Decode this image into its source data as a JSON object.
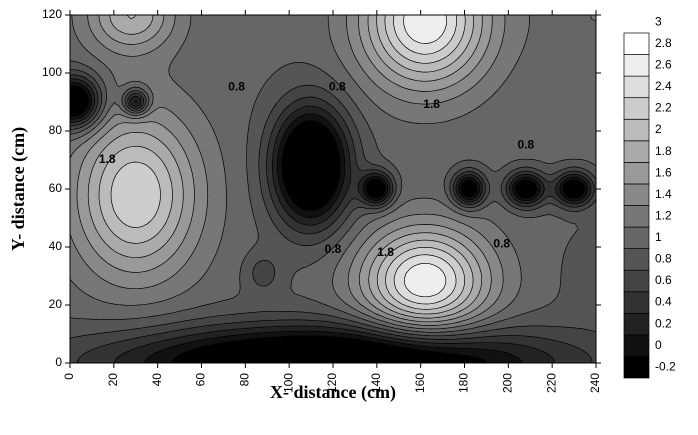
{
  "chart_data": {
    "type": "heatmap",
    "subtype": "filled-contour",
    "xlabel": "X- distance (cm)",
    "ylabel": "Y- distance (cm)",
    "xlim": [
      0,
      240
    ],
    "ylim": [
      0,
      120
    ],
    "x_ticks": [
      0,
      20,
      40,
      60,
      80,
      100,
      120,
      140,
      160,
      180,
      200,
      220,
      240
    ],
    "y_ticks": [
      0,
      20,
      40,
      60,
      80,
      100,
      120
    ],
    "colorbar": {
      "levels": [
        -0.2,
        0,
        0.2,
        0.4,
        0.6,
        0.8,
        1,
        1.2,
        1.4,
        1.6,
        1.8,
        2,
        2.2,
        2.4,
        2.6,
        2.8,
        3
      ],
      "labels": [
        "-0.2",
        "0",
        "0.2",
        "0.4",
        "0.6",
        "0.8",
        "1",
        "1.2",
        "1.4",
        "1.6",
        "1.8",
        "2",
        "2.2",
        "2.4",
        "2.6",
        "2.8",
        "3"
      ],
      "color_low": "#000000",
      "color_high": "#ffffff"
    },
    "features": [
      {
        "kind": "peak",
        "x": 30,
        "y": 58,
        "value": 2.4,
        "sx": 20,
        "sy": 20
      },
      {
        "kind": "peak",
        "x": 162,
        "y": 28,
        "value": 2.8,
        "sx": 20,
        "sy": 13
      },
      {
        "kind": "peak",
        "x": 162,
        "y": 118,
        "value": 2.8,
        "sx": 20,
        "sy": 16
      },
      {
        "kind": "peak",
        "x": 28,
        "y": 120,
        "value": 2.0,
        "sx": 14,
        "sy": 9
      },
      {
        "kind": "peak",
        "x": 240,
        "y": 120,
        "value": 1.2,
        "sx": 20,
        "sy": 18
      },
      {
        "kind": "peak",
        "x": 240,
        "y": 30,
        "value": 0.9,
        "sx": 12,
        "sy": 12
      },
      {
        "kind": "peak",
        "x": 88,
        "y": 31,
        "value": 0.7,
        "sx": 6,
        "sy": 5
      },
      {
        "kind": "trough",
        "x": 110,
        "y": 68,
        "value": -0.9,
        "sx": 12,
        "sy": 14
      },
      {
        "kind": "trough",
        "x": 2,
        "y": 90,
        "value": -0.7,
        "sx": 8,
        "sy": 6
      },
      {
        "kind": "trough",
        "x": 140,
        "y": 60,
        "value": -0.4,
        "sx": 5,
        "sy": 4
      },
      {
        "kind": "trough",
        "x": 182,
        "y": 60,
        "value": -0.4,
        "sx": 5,
        "sy": 4
      },
      {
        "kind": "trough",
        "x": 208,
        "y": 60,
        "value": -0.4,
        "sx": 6,
        "sy": 4
      },
      {
        "kind": "trough",
        "x": 230,
        "y": 60,
        "value": -0.4,
        "sx": 6,
        "sy": 4
      },
      {
        "kind": "trough",
        "x": 30,
        "y": 90,
        "value": -0.2,
        "sx": 4,
        "sy": 3
      },
      {
        "kind": "trough",
        "x": 120,
        "y": 0,
        "value": -0.8,
        "sx": 70,
        "sy": 9
      }
    ],
    "baseline_value": 1.05,
    "contour_labels": [
      {
        "text": "1.8",
        "x": 17,
        "y": 70
      },
      {
        "text": "0.8",
        "x": 76,
        "y": 95
      },
      {
        "text": "0.8",
        "x": 122,
        "y": 95
      },
      {
        "text": "1.8",
        "x": 165,
        "y": 89
      },
      {
        "text": "0.8",
        "x": 208,
        "y": 75
      },
      {
        "text": "0.8",
        "x": 120,
        "y": 39
      },
      {
        "text": "1.8",
        "x": 144,
        "y": 38
      },
      {
        "text": "0.8",
        "x": 197,
        "y": 41
      }
    ]
  }
}
